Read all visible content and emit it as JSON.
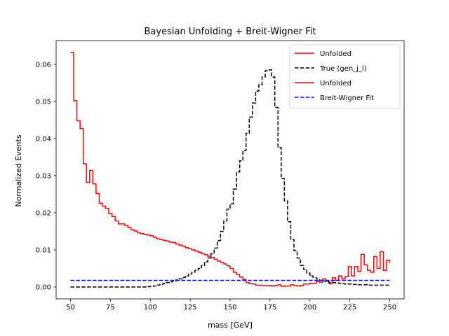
{
  "chart_data": {
    "type": "line",
    "title": "Bayesian Unfolding + Breit-Wigner Fit",
    "xlabel": "mass [GeV]",
    "ylabel": "Normalized Events",
    "xlim": [
      41,
      259
    ],
    "ylim": [
      -0.0032,
      0.0664
    ],
    "xticks": [
      50,
      75,
      100,
      125,
      150,
      175,
      200,
      225,
      250
    ],
    "yticks": [
      0.0,
      0.01,
      0.02,
      0.03,
      0.04,
      0.05,
      0.06
    ],
    "ytick_labels": [
      "0.00",
      "0.01",
      "0.02",
      "0.03",
      "0.04",
      "0.05",
      "0.06"
    ],
    "grid": false,
    "legend_position": "top-right",
    "bin_edges": [
      50,
      52,
      54,
      56,
      58,
      60,
      62,
      64,
      66,
      68,
      70,
      72,
      74,
      76,
      78,
      80,
      82,
      84,
      86,
      88,
      90,
      92,
      94,
      96,
      98,
      100,
      102,
      104,
      106,
      108,
      110,
      112,
      114,
      116,
      118,
      120,
      122,
      124,
      126,
      128,
      130,
      132,
      134,
      136,
      138,
      140,
      142,
      144,
      146,
      148,
      150,
      152,
      154,
      156,
      158,
      160,
      162,
      164,
      166,
      168,
      170,
      172,
      174,
      176,
      178,
      180,
      182,
      184,
      186,
      188,
      190,
      192,
      194,
      196,
      198,
      200,
      202,
      204,
      206,
      208,
      210,
      212,
      214,
      216,
      218,
      220,
      222,
      224,
      226,
      228,
      230,
      232,
      234,
      236,
      238,
      240,
      242,
      244,
      246,
      248,
      250
    ],
    "series": [
      {
        "name": "Unfolded",
        "style": "step",
        "color": "#ff0000",
        "dash": "solid",
        "values": [
          0.0632,
          0.0502,
          0.0448,
          0.0427,
          0.0332,
          0.0282,
          0.0314,
          0.0278,
          0.0252,
          0.0226,
          0.0218,
          0.0212,
          0.0198,
          0.019,
          0.0178,
          0.017,
          0.017,
          0.0166,
          0.016,
          0.0154,
          0.0151,
          0.0146,
          0.0144,
          0.0142,
          0.014,
          0.0138,
          0.0134,
          0.013,
          0.0128,
          0.0126,
          0.0124,
          0.0121,
          0.012,
          0.0116,
          0.0113,
          0.011,
          0.0106,
          0.0103,
          0.01,
          0.0097,
          0.0094,
          0.009,
          0.0087,
          0.0083,
          0.008,
          0.0075,
          0.007,
          0.0066,
          0.0062,
          0.0057,
          0.005,
          0.004,
          0.0034,
          0.0027,
          0.002,
          0.0012,
          0.0009,
          0.0008,
          0.0005,
          0.0005,
          0.0004,
          0.0004,
          0.0004,
          0.0003,
          0.0004,
          0.0006,
          0.0002,
          0.0003,
          0.0003,
          0.0006,
          0.0004,
          0.0003,
          0.0004,
          0.0008,
          0.0008,
          0.001,
          0.001,
          0.0015,
          0.0013,
          0.0022,
          0.0016,
          0.0009,
          0.0025,
          0.0018,
          0.003,
          0.0022,
          0.0028,
          0.0055,
          0.003,
          0.0055,
          0.0042,
          0.0088,
          0.006,
          0.0045,
          0.004,
          0.0082,
          0.005,
          0.0095,
          0.0045,
          0.0072,
          0.0065
        ]
      },
      {
        "name": "True (gen_j_l)",
        "style": "step",
        "color": "#000000",
        "dash": "dashed",
        "values": [
          0,
          0,
          0,
          0,
          0,
          0,
          0,
          0,
          0,
          0,
          0,
          0,
          0,
          0,
          0,
          0,
          0,
          0,
          0,
          0,
          0,
          0,
          0,
          0,
          0.0001,
          0.0002,
          0.0003,
          0.0005,
          0.0007,
          0.001,
          0.0012,
          0.0014,
          0.0016,
          0.0019,
          0.0022,
          0.0026,
          0.003,
          0.0035,
          0.004,
          0.0045,
          0.005,
          0.0058,
          0.0068,
          0.0078,
          0.009,
          0.0105,
          0.0125,
          0.015,
          0.0178,
          0.021,
          0.0224,
          0.0264,
          0.031,
          0.034,
          0.0368,
          0.0414,
          0.0458,
          0.0496,
          0.0528,
          0.0545,
          0.0566,
          0.0583,
          0.0585,
          0.0566,
          0.0484,
          0.0376,
          0.0292,
          0.0232,
          0.0176,
          0.0128,
          0.0098,
          0.0078,
          0.0058,
          0.0048,
          0.0038,
          0.003,
          0.0026,
          0.0022,
          0.0018,
          0.0016,
          0.0014,
          0.0012,
          0.0012,
          0.0011,
          0.001,
          0.0009,
          0.0008,
          0.0008,
          0.0007,
          0.0007,
          0.0006,
          0.0006,
          0.0006,
          0.0005,
          0.0005,
          0.0005,
          0.0005,
          0.0005,
          0.0005,
          0.0005,
          0.0005
        ]
      },
      {
        "name": "Unfolded",
        "style": "step",
        "color": "#ff0000",
        "dash": "solid",
        "values": []
      },
      {
        "name": "Breit-Wigner Fit",
        "style": "line",
        "color": "#0000ff",
        "dash": "dashed",
        "x": [
          50,
          250
        ],
        "y": [
          0.0018,
          0.0018
        ]
      }
    ]
  }
}
